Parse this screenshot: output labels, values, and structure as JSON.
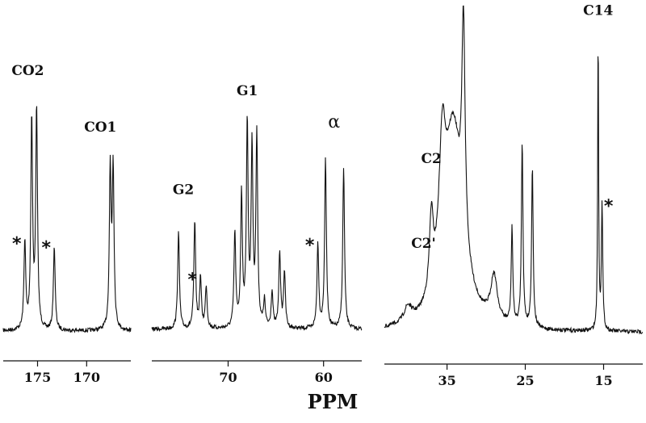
{
  "chart_data": {
    "type": "line",
    "title": "",
    "xlabel": "PPM",
    "ylabel": "",
    "grid": false,
    "x_reversed": true,
    "panels": [
      {
        "xlim": [
          178.5,
          165.5
        ],
        "ticks": [
          175,
          170
        ],
        "tick_labels": [
          "175",
          "170"
        ],
        "peaks": [
          {
            "x": 176.3,
            "height": 0.42,
            "label": "*"
          },
          {
            "x": 175.6,
            "height": 1.0
          },
          {
            "x": 175.1,
            "height": 1.05
          },
          {
            "x": 173.3,
            "height": 0.4,
            "label": "*"
          },
          {
            "x": 167.6,
            "height": 0.75
          },
          {
            "x": 167.3,
            "height": 0.76
          }
        ],
        "annotations": [
          {
            "text": "CO2",
            "x": 176.0,
            "level": 1.22
          },
          {
            "text": "CO1",
            "x": 168.6,
            "level": 0.95
          }
        ]
      },
      {
        "xlim": [
          78,
          56
        ],
        "ticks": [
          70,
          60
        ],
        "tick_labels": [
          "70",
          "60"
        ],
        "peaks": [
          {
            "x": 75.2,
            "height": 0.48
          },
          {
            "x": 73.5,
            "height": 0.53
          },
          {
            "x": 72.9,
            "height": 0.25,
            "label": "*"
          },
          {
            "x": 72.3,
            "height": 0.21
          },
          {
            "x": 69.3,
            "height": 0.47
          },
          {
            "x": 68.6,
            "height": 0.65
          },
          {
            "x": 68.0,
            "height": 1.0
          },
          {
            "x": 67.5,
            "height": 0.88
          },
          {
            "x": 67.0,
            "height": 0.95
          },
          {
            "x": 66.2,
            "height": 0.13
          },
          {
            "x": 65.4,
            "height": 0.18
          },
          {
            "x": 64.6,
            "height": 0.38
          },
          {
            "x": 64.1,
            "height": 0.28
          },
          {
            "x": 60.6,
            "height": 0.42,
            "label": "*"
          },
          {
            "x": 59.8,
            "height": 0.84
          },
          {
            "x": 57.9,
            "height": 0.8
          }
        ],
        "annotations": [
          {
            "text": "G2",
            "x": 74.7,
            "level": 0.67
          },
          {
            "text": "G1",
            "x": 68.0,
            "level": 1.16
          },
          {
            "text": "α",
            "x": 58.9,
            "level": 1.0
          }
        ]
      },
      {
        "xlim": [
          43,
          10
        ],
        "ticks": [
          35,
          25,
          15
        ],
        "tick_labels": [
          "35",
          "25",
          "15"
        ],
        "peaks": [
          {
            "x": 40.0,
            "height": 0.05,
            "width": 0.6
          },
          {
            "x": 37.0,
            "height": 0.25,
            "width": 0.3
          },
          {
            "x": 35.6,
            "height": 0.4,
            "width": 0.5
          },
          {
            "x": 34.2,
            "height": 0.65,
            "width": 1.4
          },
          {
            "x": 32.9,
            "height": 0.72,
            "width": 0.25
          },
          {
            "x": 29.0,
            "height": 0.15,
            "width": 0.5
          },
          {
            "x": 26.7,
            "height": 0.32,
            "width": 0.12
          },
          {
            "x": 25.4,
            "height": 0.61,
            "width": 0.12
          },
          {
            "x": 24.1,
            "height": 0.53,
            "width": 0.12
          },
          {
            "x": 15.7,
            "height": 1.0,
            "width": 0.07
          },
          {
            "x": 15.2,
            "height": 0.42,
            "width": 0.1,
            "label": "*"
          }
        ],
        "annotations": [
          {
            "text": "C2",
            "x": 37.0,
            "level": 0.56
          },
          {
            "text": "C2'",
            "x": 38.0,
            "level": 0.28
          },
          {
            "text": "C14",
            "x": 15.7,
            "level": 1.05
          }
        ]
      }
    ]
  }
}
